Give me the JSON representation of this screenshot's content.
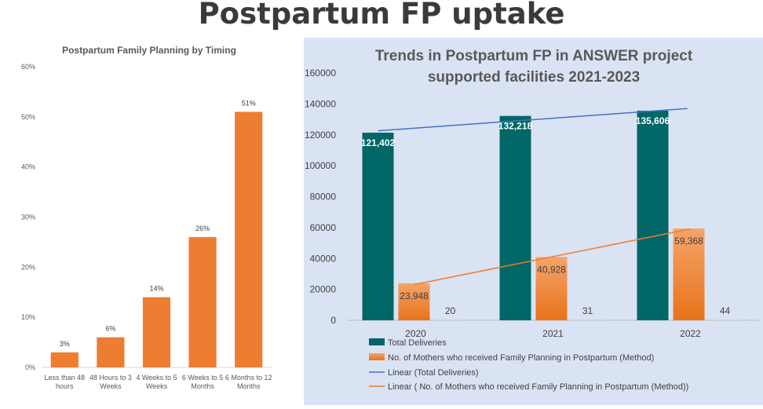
{
  "page": {
    "title": "Postpartum FP uptake"
  },
  "chart_data": [
    {
      "type": "bar",
      "title": "Postpartum Family Planning by Timing",
      "categories": [
        [
          "Less  than 48",
          "hours"
        ],
        [
          "48 Hours to 3",
          "Weeks"
        ],
        [
          "4 Weeks to 5",
          "Weeks"
        ],
        [
          "6 Weeks to 5",
          "Months"
        ],
        [
          "6 Months to 12",
          "Months"
        ]
      ],
      "values": [
        3,
        6,
        14,
        26,
        51
      ],
      "data_labels": [
        "3%",
        "6%",
        "14%",
        "26%",
        "51%"
      ],
      "y_ticks": [
        "0%",
        "10%",
        "20%",
        "30%",
        "40%",
        "50%",
        "60%"
      ],
      "ylim": [
        0,
        60
      ],
      "grid": false,
      "colors": {
        "bar": "#ed7d31"
      }
    },
    {
      "type": "bar",
      "title": [
        "Trends in Postpartum FP in ANSWER project",
        "supported facilities 2021-2023"
      ],
      "categories": [
        "2020",
        "2021",
        "2022"
      ],
      "series": [
        {
          "name": "Total Deliveries",
          "values": [
            121402,
            132218,
            135606
          ],
          "labels": [
            "121,402",
            "132,218",
            "135,606"
          ],
          "color": "#006666"
        },
        {
          "name": "No. of Mothers who received Family Planning in Postpartum (Method)",
          "values": [
            23948,
            40928,
            59368
          ],
          "labels": [
            "23,948",
            "40,928",
            "59,368"
          ],
          "color": "#ed7d31"
        },
        {
          "values": [
            20,
            31,
            44
          ],
          "labels": [
            "20",
            "31",
            "44"
          ],
          "color": "#c9c9c9"
        }
      ],
      "trendlines": [
        {
          "name": "Linear (Total Deliveries)",
          "color": "#4472c4",
          "start": 122600,
          "end": 137000
        },
        {
          "name": "Linear ( No. of Mothers who received Family Planning in Postpartum (Method))",
          "color": "#ed7d31",
          "start": 23100,
          "end": 59100
        }
      ],
      "y_ticks": [
        "0",
        "20000",
        "40000",
        "60000",
        "80000",
        "100000",
        "120000",
        "140000",
        "160000"
      ],
      "ylim": [
        0,
        160000
      ],
      "grid": false,
      "legend_position": "bottom",
      "background": "#dae3f3"
    }
  ]
}
